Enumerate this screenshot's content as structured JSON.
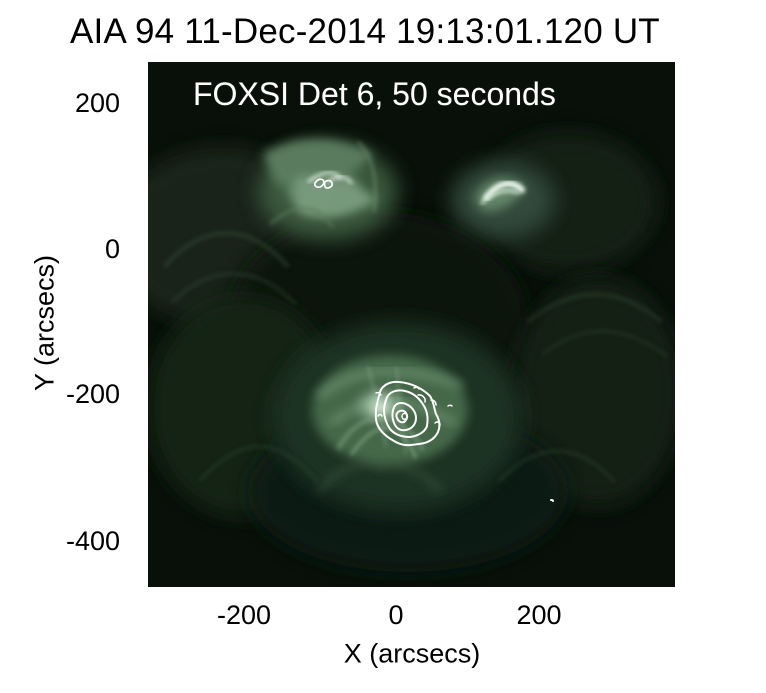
{
  "figure": {
    "title": "AIA 94 11-Dec-2014 19:13:01.120 UT",
    "overlay_label": "FOXSI Det 6, 50 seconds",
    "x_axis_label": "X (arcsecs)",
    "y_axis_label": "Y (arcsecs)",
    "x_ticks": [
      "-200",
      "0",
      "200"
    ],
    "y_ticks": [
      "200",
      "0",
      "-200",
      "-400"
    ]
  },
  "colors": {
    "background": "#ffffff",
    "image_dark": "#081009",
    "image_glow": "#9ec7a2",
    "contours": "#ffffff",
    "text": "#000000"
  }
}
